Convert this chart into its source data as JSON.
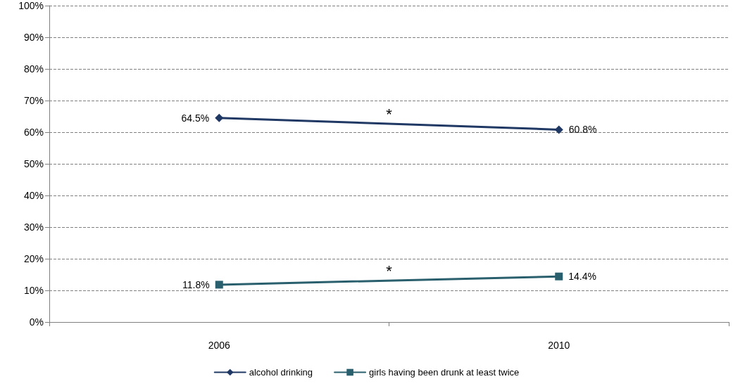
{
  "chart_data": {
    "type": "line",
    "categories": [
      "2006",
      "2010"
    ],
    "series": [
      {
        "name": "alcohol drinking",
        "color": "#1f3864",
        "values": [
          64.5,
          60.8
        ],
        "value_labels": [
          "64.5%",
          "60.8%"
        ],
        "marker": "diamond"
      },
      {
        "name": "girls having been drunk at least twice",
        "color": "#2a5f6e",
        "values": [
          11.8,
          14.4
        ],
        "value_labels": [
          "11.8%",
          "14.4%"
        ],
        "marker": "square"
      }
    ],
    "ylim": [
      0,
      100
    ],
    "yticks": [
      {
        "value": 0,
        "label": "0%"
      },
      {
        "value": 10,
        "label": "10%"
      },
      {
        "value": 20,
        "label": "20%"
      },
      {
        "value": 30,
        "label": "30%"
      },
      {
        "value": 40,
        "label": "40%"
      },
      {
        "value": 50,
        "label": "50%"
      },
      {
        "value": 60,
        "label": "60%"
      },
      {
        "value": 70,
        "label": "70%"
      },
      {
        "value": 80,
        "label": "80%"
      },
      {
        "value": 90,
        "label": "90%"
      },
      {
        "value": 100,
        "label": "100%"
      }
    ],
    "annotations": [
      "*",
      "*"
    ],
    "grid": "y",
    "legend": "bottom",
    "line_style": "solid"
  }
}
